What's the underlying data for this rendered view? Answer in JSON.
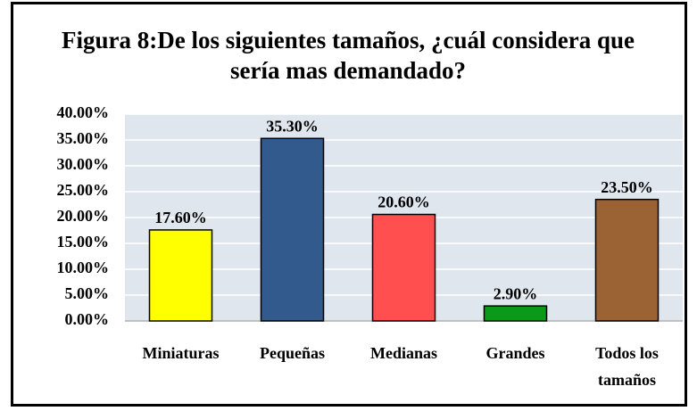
{
  "chart_data": {
    "type": "bar",
    "title": "Figura 8:De los siguientes tamaños, ¿cuál considera que sería mas demandado?",
    "categories": [
      "Miniaturas",
      "Pequeñas",
      "Medianas",
      "Grandes",
      "Todos los tamaños"
    ],
    "values": [
      17.6,
      35.3,
      20.6,
      2.9,
      23.5
    ],
    "value_labels": [
      "17.60%",
      "35.30%",
      "20.60%",
      "2.90%",
      "23.50%"
    ],
    "colors": [
      "#ffff00",
      "#335a8c",
      "#ff4f4f",
      "#0a9a1a",
      "#9b6234"
    ],
    "ylim": [
      0,
      40
    ],
    "yticks": [
      {
        "value": 0,
        "label": "0.00%"
      },
      {
        "value": 5,
        "label": "5.00%"
      },
      {
        "value": 10,
        "label": "10.00%"
      },
      {
        "value": 15,
        "label": "15.00%"
      },
      {
        "value": 20,
        "label": "20.00%"
      },
      {
        "value": 25,
        "label": "25.00%"
      },
      {
        "value": 30,
        "label": "30.00%"
      },
      {
        "value": 35,
        "label": "35.00%"
      },
      {
        "value": 40,
        "label": "40.00%"
      }
    ],
    "grid": true
  }
}
